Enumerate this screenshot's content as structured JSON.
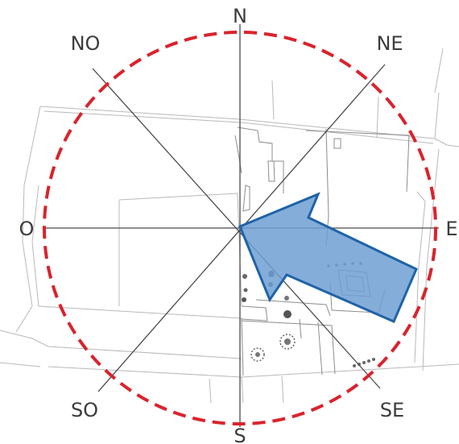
{
  "compass": {
    "north": "N",
    "northeast": "NE",
    "east": "E",
    "southeast": "SE",
    "south": "S",
    "southwest": "SO",
    "west": "O",
    "northwest": "NO"
  },
  "colors": {
    "boundary_circle": "#d9232d",
    "arrow_fill": "#6f9fd4",
    "arrow_stroke": "#1f63a8",
    "axes": "#4a4a4a",
    "map_lines": "#b9b9b9"
  },
  "icons": {
    "arrow": "wind-direction-arrow-icon"
  }
}
